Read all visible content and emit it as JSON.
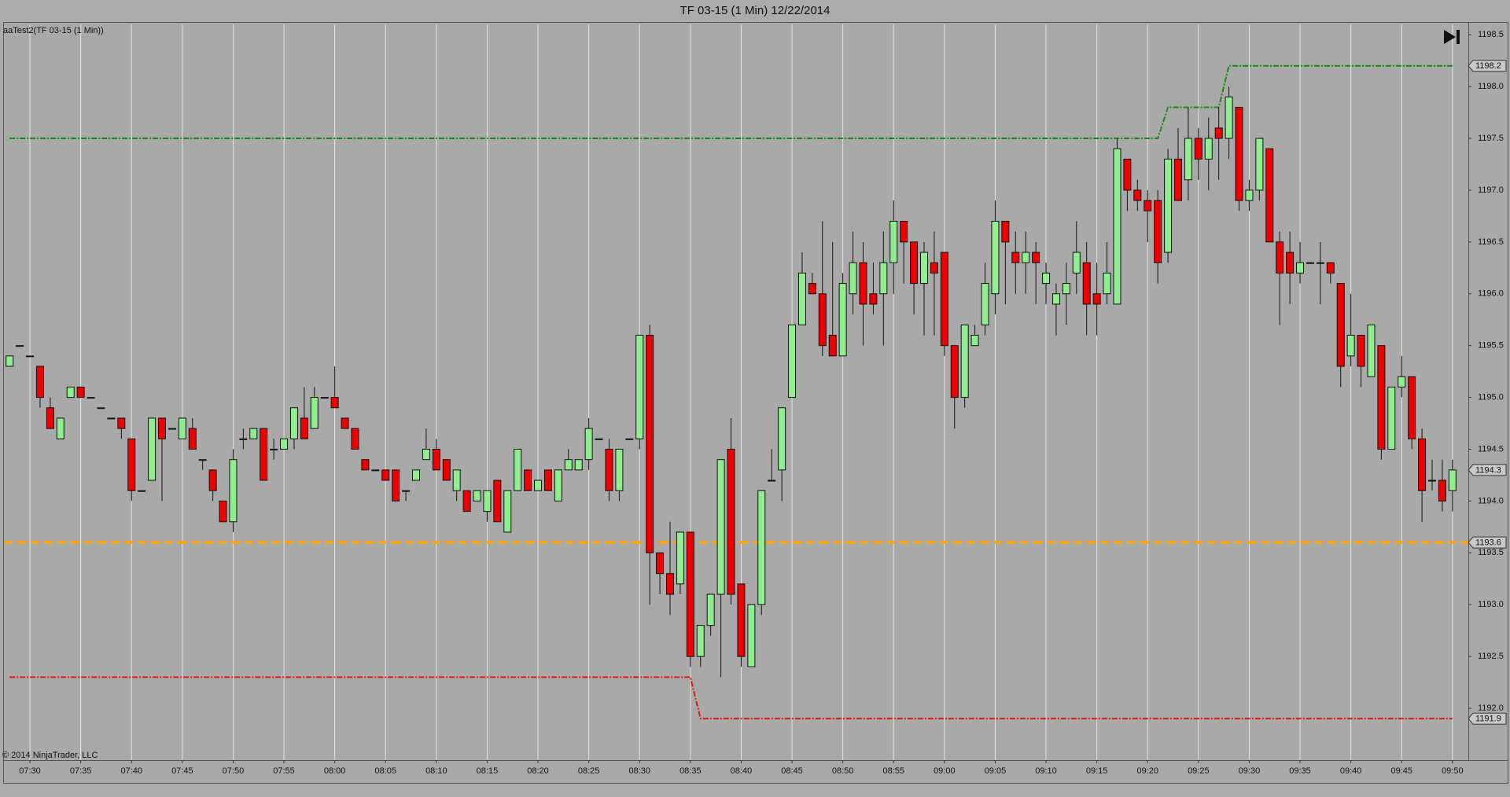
{
  "chart_data": {
    "type": "candlestick",
    "title": "TF 03-15 (1 Min)  12/22/2014",
    "subtitle": "aaTest2(TF 03-15 (1 Min))",
    "annotations": [
      "© 2014 NinjaTrader, LLC"
    ],
    "up_color": "#90ee90",
    "down_color": "#ee0000",
    "categories": [
      null,
      null,
      "07:30",
      null,
      null,
      null,
      null,
      "07:35",
      null,
      null,
      null,
      null,
      "07:40",
      null,
      null,
      null,
      null,
      "07:45",
      null,
      null,
      null,
      null,
      "07:50",
      null,
      null,
      null,
      null,
      "07:55",
      null,
      null,
      null,
      null,
      "08:00",
      null,
      null,
      null,
      null,
      "08:05",
      null,
      null,
      null,
      null,
      "08:10",
      null,
      null,
      null,
      null,
      "08:15",
      null,
      null,
      null,
      null,
      "08:20",
      null,
      null,
      null,
      null,
      "08:25",
      null,
      null,
      null,
      null,
      "08:30",
      null,
      null,
      null,
      null,
      "08:35",
      null,
      null,
      null,
      null,
      "08:40",
      null,
      null,
      null,
      null,
      "08:45",
      null,
      null,
      null,
      null,
      "08:50",
      null,
      null,
      null,
      null,
      "08:55",
      null,
      null,
      null,
      null,
      "09:00",
      null,
      null,
      null,
      null,
      "09:05",
      null,
      null,
      null,
      null,
      "09:10",
      null,
      null,
      null,
      null,
      "09:15",
      null,
      null,
      null,
      null,
      "09:20",
      null,
      null,
      null,
      null,
      "09:25",
      null,
      null,
      null,
      null,
      "09:30",
      null,
      null,
      null,
      null,
      "09:35",
      null,
      null,
      null,
      null,
      "09:40",
      null,
      null,
      null,
      null,
      "09:45",
      null,
      null,
      null,
      null,
      "09:50"
    ],
    "ohlc": [
      [
        1195.3,
        1195.4,
        1195.3,
        1195.4
      ],
      [
        1195.5,
        1195.5,
        1195.5,
        1195.5
      ],
      [
        1195.4,
        1195.4,
        1195.4,
        1195.4
      ],
      [
        1195.3,
        1195.3,
        1194.9,
        1195.0
      ],
      [
        1194.9,
        1195.0,
        1194.7,
        1194.7
      ],
      [
        1194.6,
        1194.8,
        1194.6,
        1194.8
      ],
      [
        1195.0,
        1195.1,
        1195.0,
        1195.1
      ],
      [
        1195.1,
        1195.1,
        1195.0,
        1195.0
      ],
      [
        1195.0,
        1195.0,
        1195.0,
        1195.0
      ],
      [
        1194.9,
        1194.9,
        1194.9,
        1194.9
      ],
      [
        1194.8,
        1194.8,
        1194.8,
        1194.8
      ],
      [
        1194.8,
        1194.8,
        1194.6,
        1194.7
      ],
      [
        1194.6,
        1194.6,
        1194.0,
        1194.1
      ],
      [
        1194.1,
        1194.1,
        1194.1,
        1194.1
      ],
      [
        1194.2,
        1194.8,
        1194.2,
        1194.8
      ],
      [
        1194.8,
        1194.8,
        1194.0,
        1194.6
      ],
      [
        1194.7,
        1194.7,
        1194.7,
        1194.7
      ],
      [
        1194.6,
        1194.8,
        1194.6,
        1194.8
      ],
      [
        1194.7,
        1194.8,
        1194.5,
        1194.5
      ],
      [
        1194.4,
        1194.4,
        1194.3,
        1194.4
      ],
      [
        1194.3,
        1194.3,
        1194.0,
        1194.1
      ],
      [
        1194.0,
        1194.0,
        1193.8,
        1193.8
      ],
      [
        1193.8,
        1194.5,
        1193.7,
        1194.4
      ],
      [
        1194.6,
        1194.7,
        1194.5,
        1194.6
      ],
      [
        1194.6,
        1194.7,
        1194.6,
        1194.7
      ],
      [
        1194.7,
        1194.7,
        1194.2,
        1194.2
      ],
      [
        1194.5,
        1194.6,
        1194.4,
        1194.5
      ],
      [
        1194.5,
        1194.6,
        1194.5,
        1194.6
      ],
      [
        1194.6,
        1194.9,
        1194.5,
        1194.9
      ],
      [
        1194.8,
        1195.1,
        1194.6,
        1194.6
      ],
      [
        1194.7,
        1195.1,
        1194.7,
        1195.0
      ],
      [
        1195.0,
        1195.0,
        1195.0,
        1195.0
      ],
      [
        1195.0,
        1195.3,
        1194.9,
        1194.9
      ],
      [
        1194.8,
        1194.8,
        1194.7,
        1194.7
      ],
      [
        1194.7,
        1194.7,
        1194.5,
        1194.5
      ],
      [
        1194.4,
        1194.4,
        1194.3,
        1194.3
      ],
      [
        1194.3,
        1194.3,
        1194.3,
        1194.3
      ],
      [
        1194.3,
        1194.3,
        1194.2,
        1194.2
      ],
      [
        1194.3,
        1194.3,
        1194.0,
        1194.0
      ],
      [
        1194.1,
        1194.1,
        1194.0,
        1194.1
      ],
      [
        1194.2,
        1194.3,
        1194.2,
        1194.3
      ],
      [
        1194.4,
        1194.7,
        1194.4,
        1194.5
      ],
      [
        1194.5,
        1194.6,
        1194.3,
        1194.3
      ],
      [
        1194.4,
        1194.4,
        1194.2,
        1194.2
      ],
      [
        1194.1,
        1194.3,
        1194.0,
        1194.3
      ],
      [
        1194.1,
        1194.1,
        1193.9,
        1193.9
      ],
      [
        1194.0,
        1194.1,
        1194.0,
        1194.1
      ],
      [
        1193.9,
        1194.1,
        1193.8,
        1194.1
      ],
      [
        1194.2,
        1194.2,
        1193.8,
        1193.8
      ],
      [
        1193.7,
        1194.1,
        1193.7,
        1194.1
      ],
      [
        1194.1,
        1194.5,
        1194.1,
        1194.5
      ],
      [
        1194.3,
        1194.3,
        1194.1,
        1194.1
      ],
      [
        1194.1,
        1194.2,
        1194.1,
        1194.2
      ],
      [
        1194.3,
        1194.3,
        1194.1,
        1194.1
      ],
      [
        1194.0,
        1194.3,
        1194.0,
        1194.3
      ],
      [
        1194.3,
        1194.5,
        1194.3,
        1194.4
      ],
      [
        1194.3,
        1194.4,
        1194.3,
        1194.4
      ],
      [
        1194.4,
        1194.8,
        1194.3,
        1194.7
      ],
      [
        1194.6,
        1194.6,
        1194.6,
        1194.6
      ],
      [
        1194.5,
        1194.6,
        1194.0,
        1194.1
      ],
      [
        1194.1,
        1194.5,
        1194.0,
        1194.5
      ],
      [
        1194.6,
        1194.6,
        1194.6,
        1194.6
      ],
      [
        1194.6,
        1195.6,
        1194.5,
        1195.6
      ],
      [
        1195.6,
        1195.7,
        1193.0,
        1193.5
      ],
      [
        1193.5,
        1193.5,
        1193.1,
        1193.3
      ],
      [
        1193.3,
        1193.8,
        1192.9,
        1193.1
      ],
      [
        1193.2,
        1193.7,
        1193.1,
        1193.7
      ],
      [
        1193.7,
        1193.7,
        1192.4,
        1192.5
      ],
      [
        1192.5,
        1192.8,
        1192.4,
        1192.8
      ],
      [
        1192.8,
        1193.1,
        1192.7,
        1193.1
      ],
      [
        1193.1,
        1194.4,
        1192.3,
        1194.4
      ],
      [
        1194.5,
        1194.8,
        1193.0,
        1193.1
      ],
      [
        1193.2,
        1193.2,
        1192.4,
        1192.5
      ],
      [
        1192.4,
        1193.0,
        1192.4,
        1193.0
      ],
      [
        1193.0,
        1194.1,
        1192.9,
        1194.1
      ],
      [
        1194.2,
        1194.5,
        1194.2,
        1194.2
      ],
      [
        1194.3,
        1194.9,
        1194.0,
        1194.9
      ],
      [
        1195.0,
        1195.7,
        1195.0,
        1195.7
      ],
      [
        1195.7,
        1196.4,
        1195.7,
        1196.2
      ],
      [
        1196.1,
        1196.2,
        1196.0,
        1196.0
      ],
      [
        1196.0,
        1196.7,
        1195.4,
        1195.5
      ],
      [
        1195.6,
        1196.5,
        1195.4,
        1195.4
      ],
      [
        1195.4,
        1196.2,
        1195.4,
        1196.1
      ],
      [
        1196.0,
        1196.6,
        1195.8,
        1196.3
      ],
      [
        1196.3,
        1196.5,
        1195.5,
        1195.9
      ],
      [
        1196.0,
        1196.3,
        1195.8,
        1195.9
      ],
      [
        1196.0,
        1196.6,
        1195.5,
        1196.3
      ],
      [
        1196.3,
        1196.9,
        1196.0,
        1196.7
      ],
      [
        1196.7,
        1196.7,
        1196.1,
        1196.5
      ],
      [
        1196.5,
        1196.5,
        1195.8,
        1196.1
      ],
      [
        1196.1,
        1196.5,
        1195.6,
        1196.4
      ],
      [
        1196.3,
        1196.6,
        1195.6,
        1196.2
      ],
      [
        1196.4,
        1196.4,
        1195.4,
        1195.5
      ],
      [
        1195.5,
        1195.5,
        1194.7,
        1195.0
      ],
      [
        1195.0,
        1195.7,
        1194.9,
        1195.7
      ],
      [
        1195.5,
        1195.7,
        1195.5,
        1195.6
      ],
      [
        1195.7,
        1196.3,
        1195.6,
        1196.1
      ],
      [
        1196.0,
        1196.9,
        1195.8,
        1196.7
      ],
      [
        1196.7,
        1196.7,
        1195.9,
        1196.5
      ],
      [
        1196.4,
        1196.6,
        1196.0,
        1196.3
      ],
      [
        1196.3,
        1196.6,
        1196.0,
        1196.4
      ],
      [
        1196.4,
        1196.5,
        1195.9,
        1196.3
      ],
      [
        1196.1,
        1196.3,
        1195.9,
        1196.2
      ],
      [
        1195.9,
        1196.1,
        1195.6,
        1196.0
      ],
      [
        1196.0,
        1196.3,
        1195.7,
        1196.1
      ],
      [
        1196.2,
        1196.7,
        1196.0,
        1196.4
      ],
      [
        1196.3,
        1196.5,
        1195.6,
        1195.9
      ],
      [
        1196.0,
        1196.3,
        1195.6,
        1195.9
      ],
      [
        1196.0,
        1196.5,
        1195.9,
        1196.2
      ],
      [
        1195.9,
        1197.5,
        1195.9,
        1197.4
      ],
      [
        1197.3,
        1197.3,
        1196.8,
        1197.0
      ],
      [
        1197.0,
        1197.1,
        1196.8,
        1196.9
      ],
      [
        1196.9,
        1197.0,
        1196.5,
        1196.8
      ],
      [
        1196.9,
        1197.0,
        1196.1,
        1196.3
      ],
      [
        1196.4,
        1197.4,
        1196.3,
        1197.3
      ],
      [
        1197.3,
        1197.6,
        1196.9,
        1196.9
      ],
      [
        1197.1,
        1197.8,
        1196.9,
        1197.5
      ],
      [
        1197.5,
        1197.6,
        1197.1,
        1197.3
      ],
      [
        1197.3,
        1197.7,
        1197.0,
        1197.5
      ],
      [
        1197.6,
        1197.8,
        1197.1,
        1197.5
      ],
      [
        1197.5,
        1198.0,
        1197.3,
        1197.9
      ],
      [
        1197.8,
        1197.8,
        1196.8,
        1196.9
      ],
      [
        1196.9,
        1197.1,
        1196.8,
        1197.0
      ],
      [
        1197.0,
        1197.5,
        1196.9,
        1197.5
      ],
      [
        1197.4,
        1197.4,
        1196.5,
        1196.5
      ],
      [
        1196.5,
        1196.6,
        1195.7,
        1196.2
      ],
      [
        1196.4,
        1196.6,
        1195.9,
        1196.2
      ],
      [
        1196.2,
        1196.5,
        1196.1,
        1196.3
      ],
      [
        1196.3,
        1196.3,
        1196.3,
        1196.3
      ],
      [
        1196.3,
        1196.5,
        1195.9,
        1196.3
      ],
      [
        1196.3,
        1196.3,
        1196.1,
        1196.2
      ],
      [
        1196.1,
        1196.1,
        1195.1,
        1195.3
      ],
      [
        1195.4,
        1196.0,
        1195.3,
        1195.6
      ],
      [
        1195.6,
        1195.6,
        1195.1,
        1195.3
      ],
      [
        1195.2,
        1195.7,
        1195.2,
        1195.7
      ],
      [
        1195.5,
        1195.5,
        1194.4,
        1194.5
      ],
      [
        1194.5,
        1195.1,
        1194.5,
        1195.1
      ],
      [
        1195.1,
        1195.4,
        1195.0,
        1195.2
      ],
      [
        1195.2,
        1195.2,
        1194.5,
        1194.6
      ],
      [
        1194.6,
        1194.7,
        1193.8,
        1194.1
      ],
      [
        1194.2,
        1194.4,
        1194.1,
        1194.2
      ],
      [
        1194.2,
        1194.4,
        1193.9,
        1194.0
      ],
      [
        1194.1,
        1194.4,
        1193.9,
        1194.3
      ]
    ],
    "lines": [
      {
        "color": "#178a17",
        "values": [
          1197.5,
          1197.5,
          1197.5,
          1197.5,
          1197.5,
          1197.5,
          1197.5,
          1197.5,
          1197.5,
          1197.5,
          1197.5,
          1197.5,
          1197.5,
          1197.5,
          1197.5,
          1197.5,
          1197.5,
          1197.5,
          1197.5,
          1197.5,
          1197.5,
          1197.5,
          1197.5,
          1197.5,
          1197.5,
          1197.5,
          1197.5,
          1197.5,
          1197.5,
          1197.5,
          1197.5,
          1197.5,
          1197.5,
          1197.5,
          1197.5,
          1197.5,
          1197.5,
          1197.5,
          1197.5,
          1197.5,
          1197.5,
          1197.5,
          1197.5,
          1197.5,
          1197.5,
          1197.5,
          1197.5,
          1197.5,
          1197.5,
          1197.5,
          1197.5,
          1197.5,
          1197.5,
          1197.5,
          1197.5,
          1197.5,
          1197.5,
          1197.5,
          1197.5,
          1197.5,
          1197.5,
          1197.5,
          1197.5,
          1197.5,
          1197.5,
          1197.5,
          1197.5,
          1197.5,
          1197.5,
          1197.5,
          1197.5,
          1197.5,
          1197.5,
          1197.5,
          1197.5,
          1197.5,
          1197.5,
          1197.5,
          1197.5,
          1197.5,
          1197.5,
          1197.5,
          1197.5,
          1197.5,
          1197.5,
          1197.5,
          1197.5,
          1197.5,
          1197.5,
          1197.5,
          1197.5,
          1197.5,
          1197.5,
          1197.5,
          1197.5,
          1197.5,
          1197.5,
          1197.5,
          1197.5,
          1197.5,
          1197.5,
          1197.5,
          1197.5,
          1197.5,
          1197.5,
          1197.5,
          1197.5,
          1197.5,
          1197.5,
          1197.5,
          1197.5,
          1197.5,
          1197.5,
          1197.5,
          1197.8,
          1197.8,
          1197.8,
          1197.8,
          1197.8,
          1197.8,
          1198.2,
          1198.2,
          1198.2,
          1198.2,
          1198.2,
          1198.2,
          1198.2,
          1198.2,
          1198.2,
          1198.2,
          1198.2,
          1198.2,
          1198.2,
          1198.2,
          1198.2,
          1198.2,
          1198.2,
          1198.2,
          1198.2,
          1198.2,
          1198.2,
          1198.2,
          1198.2
        ]
      },
      {
        "color": "#e01515",
        "values": [
          1192.3,
          1192.3,
          1192.3,
          1192.3,
          1192.3,
          1192.3,
          1192.3,
          1192.3,
          1192.3,
          1192.3,
          1192.3,
          1192.3,
          1192.3,
          1192.3,
          1192.3,
          1192.3,
          1192.3,
          1192.3,
          1192.3,
          1192.3,
          1192.3,
          1192.3,
          1192.3,
          1192.3,
          1192.3,
          1192.3,
          1192.3,
          1192.3,
          1192.3,
          1192.3,
          1192.3,
          1192.3,
          1192.3,
          1192.3,
          1192.3,
          1192.3,
          1192.3,
          1192.3,
          1192.3,
          1192.3,
          1192.3,
          1192.3,
          1192.3,
          1192.3,
          1192.3,
          1192.3,
          1192.3,
          1192.3,
          1192.3,
          1192.3,
          1192.3,
          1192.3,
          1192.3,
          1192.3,
          1192.3,
          1192.3,
          1192.3,
          1192.3,
          1192.3,
          1192.3,
          1192.3,
          1192.3,
          1192.3,
          1192.3,
          1192.3,
          1192.3,
          1192.3,
          1192.3,
          1191.9,
          1191.9,
          1191.9,
          1191.9,
          1191.9,
          1191.9,
          1191.9,
          1191.9,
          1191.9,
          1191.9,
          1191.9,
          1191.9,
          1191.9,
          1191.9,
          1191.9,
          1191.9,
          1191.9,
          1191.9,
          1191.9,
          1191.9,
          1191.9,
          1191.9,
          1191.9,
          1191.9,
          1191.9,
          1191.9,
          1191.9,
          1191.9,
          1191.9,
          1191.9,
          1191.9,
          1191.9,
          1191.9,
          1191.9,
          1191.9,
          1191.9,
          1191.9,
          1191.9,
          1191.9,
          1191.9,
          1191.9,
          1191.9,
          1191.9,
          1191.9,
          1191.9,
          1191.9,
          1191.9,
          1191.9,
          1191.9,
          1191.9,
          1191.9,
          1191.9,
          1191.9,
          1191.9,
          1191.9,
          1191.9,
          1191.9,
          1191.9,
          1191.9,
          1191.9,
          1191.9,
          1191.9,
          1191.9,
          1191.9,
          1191.9,
          1191.9,
          1191.9,
          1191.9,
          1191.9,
          1191.9,
          1191.9,
          1191.9,
          1191.9,
          1191.9,
          1191.9
        ]
      }
    ],
    "levels": [
      {
        "color": "#ffa500",
        "value": 1193.6
      }
    ],
    "ylim": [
      1191.5,
      1198.6
    ],
    "yticks": [
      {
        "value": 1192,
        "label": "1192.0"
      },
      {
        "value": 1192.5,
        "label": "1192.5"
      },
      {
        "value": 1193,
        "label": "1193.0"
      },
      {
        "value": 1193.5,
        "label": "1193.5"
      },
      {
        "value": 1194,
        "label": "1194.0"
      },
      {
        "value": 1194.5,
        "label": "1194.5"
      },
      {
        "value": 1195,
        "label": "1195.0"
      },
      {
        "value": 1195.5,
        "label": "1195.5"
      },
      {
        "value": 1196,
        "label": "1196.0"
      },
      {
        "value": 1196.5,
        "label": "1196.5"
      },
      {
        "value": 1197,
        "label": "1197.0"
      },
      {
        "value": 1197.5,
        "label": "1197.5"
      },
      {
        "value": 1198,
        "label": "1198.0"
      },
      {
        "value": 1198.5,
        "label": "1198.5"
      }
    ],
    "grid": true
  }
}
